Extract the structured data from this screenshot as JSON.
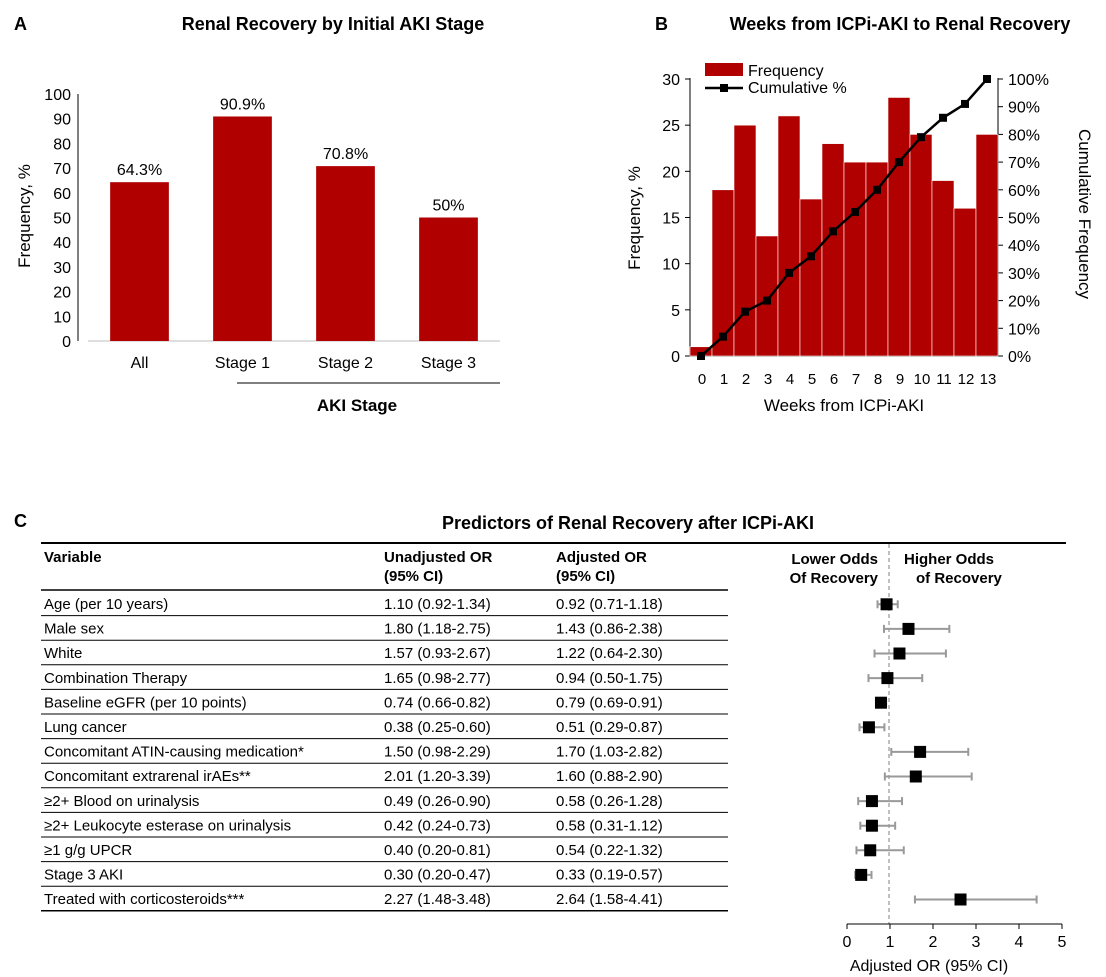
{
  "panel_a": {
    "letter": "A",
    "chart_data": {
      "type": "bar",
      "title": "Renal Recovery by Initial AKI Stage",
      "xlabel": "AKI Stage",
      "ylabel": "Frequency, %",
      "categories": [
        "All",
        "Stage 1",
        "Stage 2",
        "Stage 3"
      ],
      "values": [
        64.3,
        90.9,
        70.8,
        50
      ],
      "data_labels": [
        "64.3%",
        "90.9%",
        "70.8%",
        "50%"
      ],
      "ylim": [
        0,
        100
      ],
      "yticks": [
        0,
        10,
        20,
        30,
        40,
        50,
        60,
        70,
        80,
        90,
        100
      ],
      "bar_color": "#b00000"
    }
  },
  "panel_b": {
    "letter": "B",
    "chart_data": {
      "type": "bar",
      "title": "Weeks from ICPi-AKI to Renal Recovery",
      "xlabel": "Weeks from ICPi-AKI",
      "ylabel": "Frequency, %",
      "y2label": "Cumulative Frequency",
      "x": [
        0,
        1,
        2,
        3,
        4,
        5,
        6,
        7,
        8,
        9,
        10,
        11,
        12,
        13
      ],
      "series": [
        {
          "name": "Frequency",
          "type": "bar",
          "color": "#b00000",
          "values": [
            1,
            18,
            25,
            13,
            26,
            17,
            23,
            21,
            21,
            28,
            24,
            19,
            16,
            24
          ]
        },
        {
          "name": "Cumulative %",
          "type": "line",
          "color": "#000000",
          "values": [
            0,
            7,
            16,
            20,
            30,
            36,
            45,
            52,
            60,
            70,
            79,
            86,
            91,
            100
          ]
        }
      ],
      "ylim": [
        0,
        30
      ],
      "yticks": [
        0,
        5,
        10,
        15,
        20,
        25,
        30
      ],
      "y2lim": [
        0,
        100
      ],
      "y2ticks": [
        "0%",
        "10%",
        "20%",
        "30%",
        "40%",
        "50%",
        "60%",
        "70%",
        "80%",
        "90%",
        "100%"
      ],
      "legend": "top-left"
    }
  },
  "panel_c": {
    "letter": "C",
    "title": "Predictors of Renal Recovery after ICPi-AKI",
    "headers": {
      "variable": "Variable",
      "unadj_1": "Unadjusted OR",
      "unadj_2": "(95% CI)",
      "adj_1": "Adjusted OR",
      "adj_2": "(95% CI)",
      "lower_1": "Lower Odds",
      "lower_2": "Of Recovery",
      "higher_1": "Higher Odds",
      "higher_2": "of Recovery"
    },
    "rows": [
      {
        "variable": "Age (per 10 years)",
        "unadjusted": "1.10 (0.92-1.34)",
        "adjusted": "0.92 (0.71-1.18)"
      },
      {
        "variable": "Male sex",
        "unadjusted": "1.80 (1.18-2.75)",
        "adjusted": "1.43 (0.86-2.38)"
      },
      {
        "variable": "White",
        "unadjusted": "1.57 (0.93-2.67)",
        "adjusted": "1.22 (0.64-2.30)"
      },
      {
        "variable": "Combination Therapy",
        "unadjusted": "1.65 (0.98-2.77)",
        "adjusted": "0.94 (0.50-1.75)"
      },
      {
        "variable": "Baseline eGFR (per 10 points)",
        "unadjusted": "0.74 (0.66-0.82)",
        "adjusted": "0.79 (0.69-0.91)"
      },
      {
        "variable": "Lung cancer",
        "unadjusted": "0.38 (0.25-0.60)",
        "adjusted": "0.51 (0.29-0.87)"
      },
      {
        "variable": "Concomitant ATIN-causing medication*",
        "unadjusted": "1.50 (0.98-2.29)",
        "adjusted": "1.70 (1.03-2.82)"
      },
      {
        "variable": "Concomitant extrarenal irAEs**",
        "unadjusted": "2.01 (1.20-3.39)",
        "adjusted": "1.60 (0.88-2.90)"
      },
      {
        "variable": "≥2+ Blood on urinalysis",
        "unadjusted": "0.49 (0.26-0.90)",
        "adjusted": "0.58 (0.26-1.28)"
      },
      {
        "variable": "≥2+ Leukocyte esterase on urinalysis",
        "unadjusted": "0.42 (0.24-0.73)",
        "adjusted": "0.58 (0.31-1.12)"
      },
      {
        "variable": "≥1 g/g UPCR",
        "unadjusted": "0.40 (0.20-0.81)",
        "adjusted": "0.54 (0.22-1.32)"
      },
      {
        "variable": "Stage 3 AKI",
        "unadjusted": "0.30 (0.20-0.47)",
        "adjusted": "0.33 (0.19-0.57)"
      },
      {
        "variable": "Treated with corticosteroids***",
        "unadjusted": "2.27 (1.48-3.48)",
        "adjusted": "2.64 (1.58-4.41)"
      }
    ],
    "chart_data": {
      "type": "scatter",
      "xlabel": "Adjusted OR (95% CI)",
      "xlim": [
        0,
        5
      ],
      "xticks": [
        0,
        1,
        2,
        3,
        4,
        5
      ],
      "reference_line": 1,
      "points": [
        {
          "or": 0.92,
          "lo": 0.71,
          "hi": 1.18
        },
        {
          "or": 1.43,
          "lo": 0.86,
          "hi": 2.38
        },
        {
          "or": 1.22,
          "lo": 0.64,
          "hi": 2.3
        },
        {
          "or": 0.94,
          "lo": 0.5,
          "hi": 1.75
        },
        {
          "or": 0.79,
          "lo": 0.69,
          "hi": 0.91
        },
        {
          "or": 0.51,
          "lo": 0.29,
          "hi": 0.87
        },
        {
          "or": 1.7,
          "lo": 1.03,
          "hi": 2.82
        },
        {
          "or": 1.6,
          "lo": 0.88,
          "hi": 2.9
        },
        {
          "or": 0.58,
          "lo": 0.26,
          "hi": 1.28
        },
        {
          "or": 0.58,
          "lo": 0.31,
          "hi": 1.12
        },
        {
          "or": 0.54,
          "lo": 0.22,
          "hi": 1.32
        },
        {
          "or": 0.33,
          "lo": 0.19,
          "hi": 0.57
        },
        {
          "or": 2.64,
          "lo": 1.58,
          "hi": 4.41
        }
      ],
      "whisker_color": "#999999",
      "marker_color": "#000000"
    }
  }
}
